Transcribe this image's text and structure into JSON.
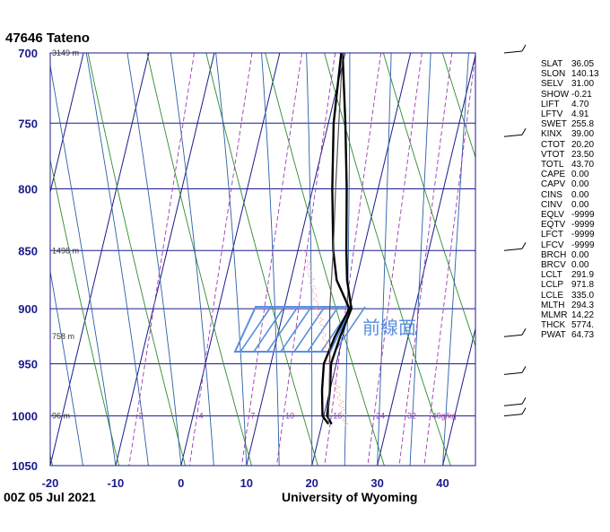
{
  "header": {
    "title": "47646  Tateno"
  },
  "footer": {
    "time": "00Z 05 Jul 2021",
    "source": "University of Wyoming"
  },
  "front_label": "前線面",
  "colors": {
    "grid": "#1a1a8c",
    "dry_adiabat": "#2e8b2e",
    "moist_adiabat": "#2a5fa8",
    "mixing_ratio": "#9a3ab0",
    "temperature": "#000000",
    "parcel": "#555555",
    "annotation": "#5a8fe0",
    "pink_line": "#f0a0a8"
  },
  "chart_data": {
    "type": "line",
    "title": "47646  Tateno",
    "xlabel": "",
    "ylabel": "",
    "xlim": [
      -20,
      45
    ],
    "ylim": [
      1050,
      700
    ],
    "y_scale": "log",
    "x_ticks": [
      "-20",
      "-10",
      "0",
      "10",
      "20",
      "30",
      "40"
    ],
    "y_ticks": [
      "700",
      "750",
      "800",
      "850",
      "900",
      "950",
      "1000",
      "1050"
    ],
    "height_labels": [
      {
        "p": 700,
        "text": "3149 m"
      },
      {
        "p": 850,
        "text": "1498 m"
      },
      {
        "p": 925,
        "text": "758 m"
      },
      {
        "p": 1000,
        "text": "96 m"
      }
    ],
    "mixing_ratio_labels": [
      "2",
      "4",
      "7",
      "10",
      "16",
      "24",
      "32",
      "40g/kg"
    ],
    "series": [
      {
        "p": [
          1008,
          1000,
          975,
          950,
          925,
          900,
          875,
          850,
          800,
          750,
          700
        ],
        "t": [
          21.5,
          20.5,
          20.0,
          19.2,
          19.6,
          20.3,
          18.6,
          17.4,
          15.2,
          12.6,
          9.6
        ]
      },
      {
        "p": [
          1008,
          1000,
          975,
          950,
          925,
          900,
          875,
          850,
          800,
          750,
          700
        ],
        "t": [
          21.0,
          19.8,
          18.8,
          18.1,
          18.8,
          20.0,
          17.0,
          15.4,
          13.0,
          10.8,
          9.4
        ]
      },
      {
        "p": [
          1008,
          950,
          900,
          850,
          800,
          750,
          700
        ],
        "t": [
          21.0,
          19.0,
          17.0,
          15.4,
          13.5,
          11.6,
          9.6
        ]
      }
    ],
    "indices": [
      [
        "SLAT",
        "36.05"
      ],
      [
        "SLON",
        "140.13"
      ],
      [
        "SELV",
        "31.00"
      ],
      [
        "SHOW",
        "-0.21"
      ],
      [
        "LIFT",
        "4.70"
      ],
      [
        "LFTV",
        "4.91"
      ],
      [
        "SWET",
        "255.8"
      ],
      [
        "KINX",
        "39.00"
      ],
      [
        "CTOT",
        "20.20"
      ],
      [
        "VTOT",
        "23.50"
      ],
      [
        "TOTL",
        "43.70"
      ],
      [
        "CAPE",
        "0.00"
      ],
      [
        "CAPV",
        "0.00"
      ],
      [
        "CINS",
        "0.00"
      ],
      [
        "CINV",
        "0.00"
      ],
      [
        "EQLV",
        "-9999"
      ],
      [
        "EQTV",
        "-9999"
      ],
      [
        "LFCT",
        "-9999"
      ],
      [
        "LFCV",
        "-9999"
      ],
      [
        "BRCH",
        "0.00"
      ],
      [
        "BRCV",
        "0.00"
      ],
      [
        "LCLT",
        "291.9"
      ],
      [
        "LCLP",
        "971.8"
      ],
      [
        "LCLE",
        "335.0"
      ],
      [
        "MLTH",
        "294.3"
      ],
      [
        "MLMR",
        "14.22"
      ],
      [
        "THCK",
        "5774."
      ],
      [
        "PWAT",
        "64.73"
      ]
    ]
  }
}
